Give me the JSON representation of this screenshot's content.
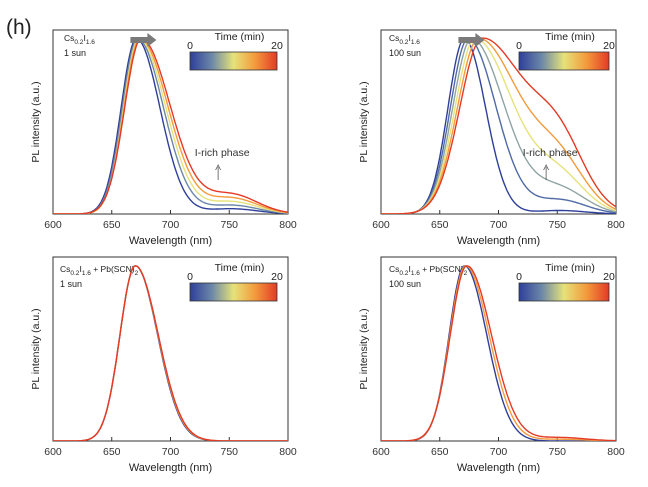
{
  "figure_label": "(h)",
  "colorbar": {
    "title": "Time (min)",
    "min_label": "0",
    "max_label": "20",
    "colors": [
      "#2e3f9a",
      "#6b87a8",
      "#e6e27a",
      "#f39a3c",
      "#e33a26"
    ]
  },
  "chart_data": [
    {
      "type": "line",
      "composition": "Cs0.2I1.6",
      "composition_parts": {
        "base": "Cs",
        "sub1": "0.2",
        "mid": "I",
        "sub2": "1.6",
        "tail": ""
      },
      "condition": "1 sun",
      "title": "",
      "xlabel": "Wavelength (nm)",
      "ylabel": "PL intensity (a.u.)",
      "xlim": [
        600,
        800
      ],
      "xticks": [
        600,
        650,
        700,
        750,
        800
      ],
      "ylim": [
        0,
        1.05
      ],
      "annotation": "I-rich phase",
      "annotation_x": 755,
      "has_shift_arrow": true,
      "series": [
        {
          "name": "0 min",
          "peak": 671,
          "width_left": 13,
          "width_right": 20,
          "shoulder": 0.03,
          "color": "#2e3f9a"
        },
        {
          "name": "5 min",
          "peak": 672,
          "width_left": 13,
          "width_right": 22,
          "shoulder": 0.05,
          "color": "#6b87a8"
        },
        {
          "name": "10 min",
          "peak": 673,
          "width_left": 13,
          "width_right": 23,
          "shoulder": 0.07,
          "color": "#e6e27a"
        },
        {
          "name": "15 min",
          "peak": 674,
          "width_left": 13.5,
          "width_right": 24,
          "shoulder": 0.09,
          "color": "#f39a3c"
        },
        {
          "name": "20 min",
          "peak": 675,
          "width_left": 14,
          "width_right": 25,
          "shoulder": 0.11,
          "color": "#e33a26"
        }
      ]
    },
    {
      "type": "line",
      "composition": "Cs0.2I1.6",
      "composition_parts": {
        "base": "Cs",
        "sub1": "0.2",
        "mid": "I",
        "sub2": "1.6",
        "tail": ""
      },
      "condition": "100 sun",
      "title": "",
      "xlabel": "Wavelength (nm)",
      "ylabel": "PL intensity (a.u.)",
      "xlim": [
        600,
        800
      ],
      "xticks": [
        600,
        650,
        700,
        750,
        800
      ],
      "ylim": [
        0,
        1.05
      ],
      "annotation": "I-rich phase",
      "annotation_x": 755,
      "has_shift_arrow": true,
      "series": [
        {
          "name": "0 min",
          "peak": 671,
          "width_left": 14,
          "width_right": 18,
          "shoulder": 0.02,
          "color": "#2e3f9a"
        },
        {
          "name": "3 min",
          "peak": 674,
          "width_left": 15,
          "width_right": 24,
          "shoulder": 0.08,
          "color": "#4f6aa5"
        },
        {
          "name": "6 min",
          "peak": 677,
          "width_left": 16,
          "width_right": 28,
          "shoulder": 0.14,
          "color": "#8fa4a3"
        },
        {
          "name": "10 min",
          "peak": 680,
          "width_left": 17,
          "width_right": 32,
          "shoulder": 0.2,
          "color": "#e6e27a"
        },
        {
          "name": "14 min",
          "peak": 683,
          "width_left": 18,
          "width_right": 35,
          "shoulder": 0.26,
          "color": "#f39a3c"
        },
        {
          "name": "20 min",
          "peak": 686,
          "width_left": 19,
          "width_right": 38,
          "shoulder": 0.33,
          "color": "#e33a26"
        }
      ]
    },
    {
      "type": "line",
      "composition": "Cs0.2I1.6 + Pb(SCN)2",
      "composition_parts": {
        "base": "Cs",
        "sub1": "0.2",
        "mid": "I",
        "sub2": "1.6",
        "tail": " + Pb(SCN)",
        "sub3": "2"
      },
      "condition": "1 sun",
      "title": "",
      "xlabel": "Wavelength (nm)",
      "ylabel": "PL intensity (a.u.)",
      "xlim": [
        600,
        800
      ],
      "xticks": [
        600,
        650,
        700,
        750,
        800
      ],
      "ylim": [
        0,
        1.05
      ],
      "annotation": "",
      "has_shift_arrow": false,
      "series": [
        {
          "name": "0 min",
          "peak": 670,
          "width_left": 13,
          "width_right": 19,
          "shoulder": 0,
          "color": "#2e3f9a"
        },
        {
          "name": "10 min",
          "peak": 670,
          "width_left": 13,
          "width_right": 19.3,
          "shoulder": 0,
          "color": "#f39a3c"
        },
        {
          "name": "20 min",
          "peak": 670,
          "width_left": 13,
          "width_right": 19.6,
          "shoulder": 0,
          "color": "#e33a26"
        }
      ]
    },
    {
      "type": "line",
      "composition": "Cs0.2I1.6 + Pb(SCN)2",
      "composition_parts": {
        "base": "Cs",
        "sub1": "0.2",
        "mid": "I",
        "sub2": "1.6",
        "tail": " + Pb(SCN)",
        "sub3": "2"
      },
      "condition": "100 sun",
      "title": "",
      "xlabel": "Wavelength (nm)",
      "ylabel": "PL intensity (a.u.)",
      "xlim": [
        600,
        800
      ],
      "xticks": [
        600,
        650,
        700,
        750,
        800
      ],
      "ylim": [
        0,
        1.05
      ],
      "annotation": "",
      "has_shift_arrow": false,
      "series": [
        {
          "name": "0 min",
          "peak": 671,
          "width_left": 13,
          "width_right": 19,
          "shoulder": 0,
          "color": "#2e3f9a"
        },
        {
          "name": "10 min",
          "peak": 672,
          "width_left": 13.5,
          "width_right": 20,
          "shoulder": 0.01,
          "color": "#f39a3c"
        },
        {
          "name": "20 min",
          "peak": 673,
          "width_left": 14,
          "width_right": 21,
          "shoulder": 0.02,
          "color": "#e33a26"
        }
      ]
    }
  ]
}
